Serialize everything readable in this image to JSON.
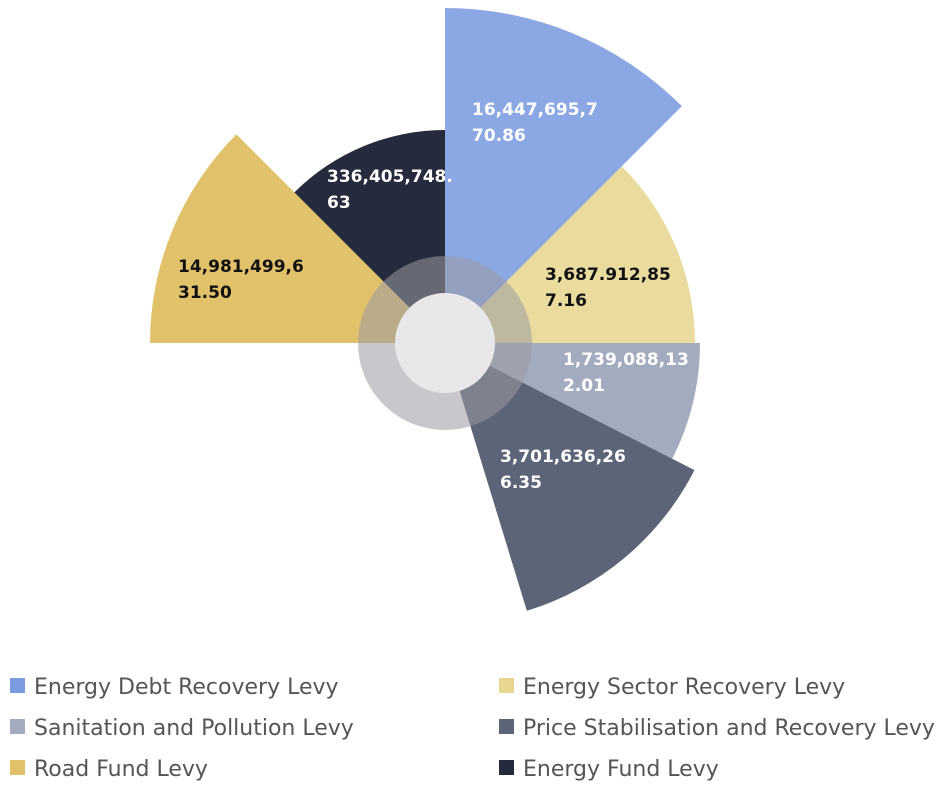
{
  "chart_data": {
    "type": "rose",
    "series": [
      {
        "name": "Energy Debt Recovery Levy",
        "color": "#7b9be0",
        "values": [
          16447695770.86
        ],
        "value_labels": [
          "16,447,695,770.86"
        ]
      },
      {
        "name": "Energy Sector Recovery Levy",
        "color": "#e6d68e",
        "values": [
          3687912857.16
        ],
        "value_labels": [
          "3,687.912,857.16"
        ]
      },
      {
        "name": "Sanitation and Pollution Levy",
        "color": "#a3acbf",
        "values": [
          1739088132.01
        ],
        "value_labels": [
          "1,739,088,132.01"
        ]
      },
      {
        "name": "Price Stabilisation and Recovery Levy",
        "color": "#5c6478",
        "values": [
          3701636266.35
        ],
        "value_labels": [
          "3,701,636,266.35"
        ]
      },
      {
        "name": "Road Fund Levy",
        "color": "#e2c16b",
        "values": [
          14981499631.5
        ],
        "value_labels": [
          "14,981,499,631.50"
        ]
      },
      {
        "name": "Energy Fund Levy",
        "color": "#262a3d",
        "values": [
          336405748.63
        ],
        "value_labels": [
          "336,405,748.63"
        ]
      }
    ]
  }
}
